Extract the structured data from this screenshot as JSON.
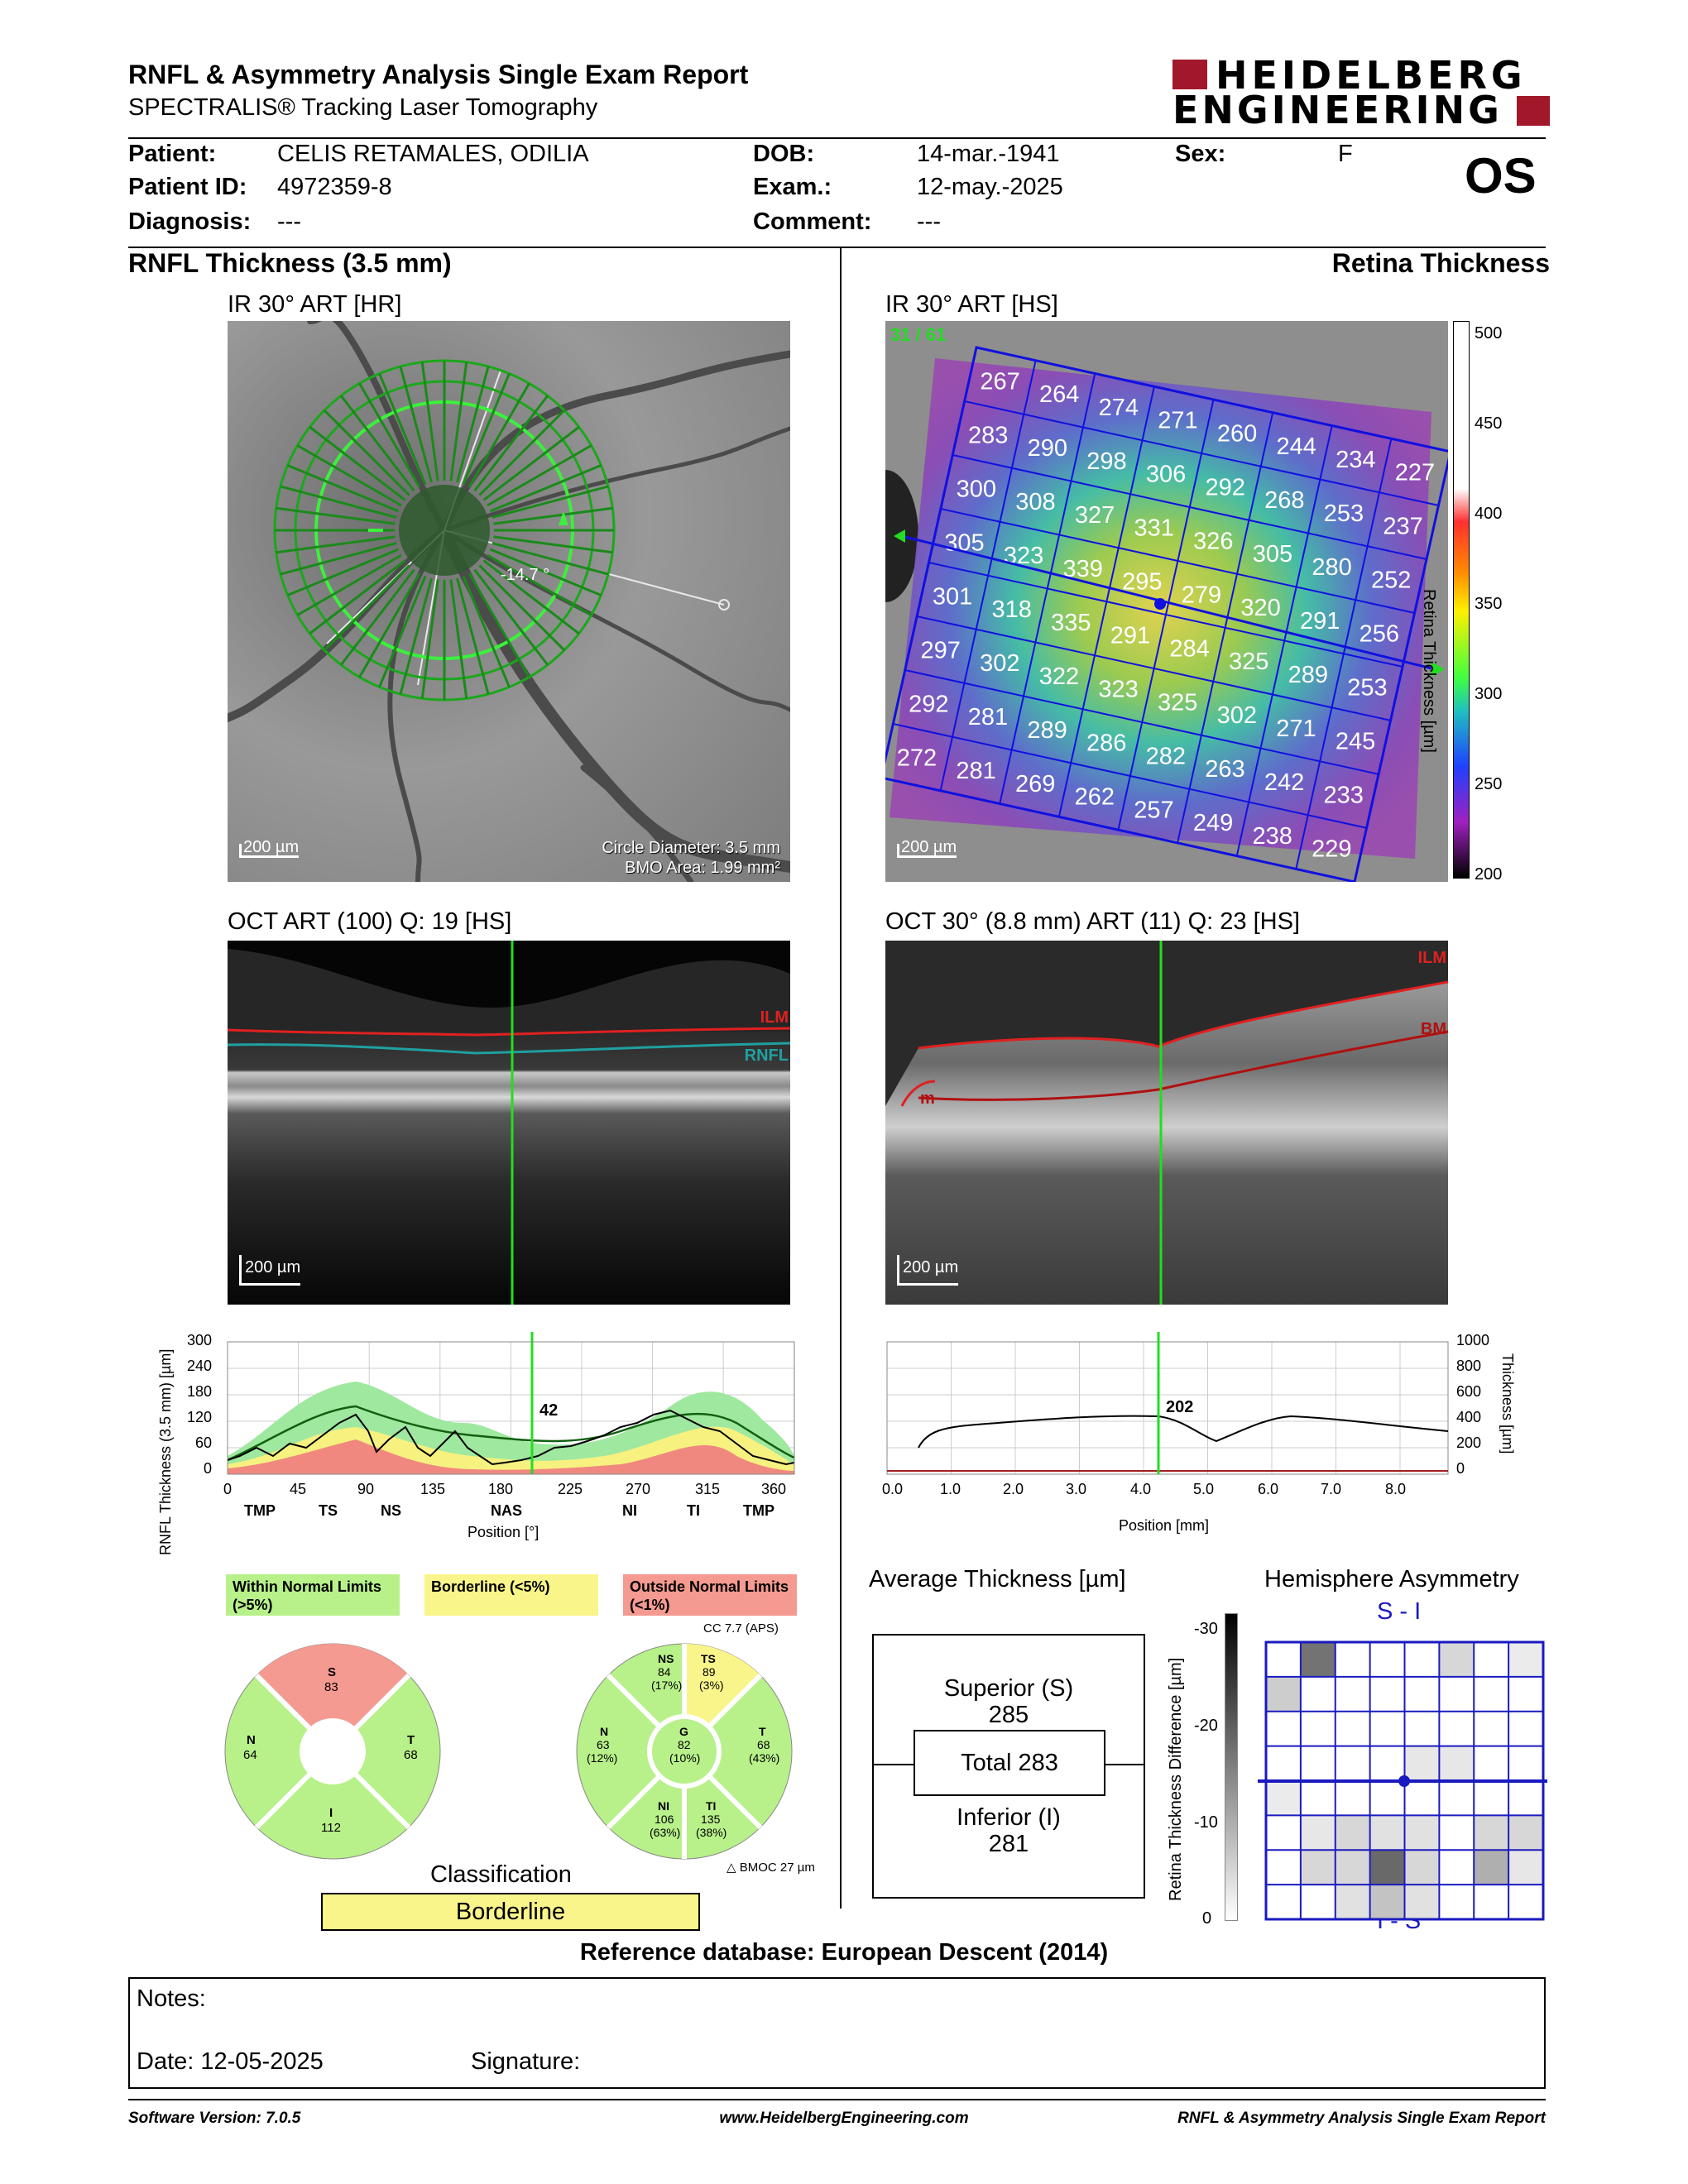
{
  "header": {
    "title": "RNFL & Asymmetry Analysis Single Exam Report",
    "subtitle": "SPECTRALIS® Tracking Laser Tomography",
    "logo_line1": "HEIDELBERG",
    "logo_line2": "ENGINEERING",
    "eye": "OS"
  },
  "patient": {
    "name_label": "Patient:",
    "name": "CELIS RETAMALES, ODILIA",
    "id_label": "Patient ID:",
    "id": "4972359-8",
    "diag_label": "Diagnosis:",
    "diag": "---",
    "dob_label": "DOB:",
    "dob": "14-mar.-1941",
    "exam_label": "Exam.:",
    "exam": "12-may.-2025",
    "comment_label": "Comment:",
    "comment": "---",
    "sex_label": "Sex:",
    "sex": "F"
  },
  "left": {
    "section_title": "RNFL Thickness (3.5 mm)",
    "ir_title": "IR 30° ART [HR]",
    "ir_scale": "200 µm",
    "ir_angle": "-14.7 °",
    "circle_diameter": "Circle Diameter: 3.5 mm",
    "bmo_area": "BMO Area: 1.99 mm²",
    "oct_title": "OCT ART (100) Q: 19 [HS]",
    "oct_scale": "200 µm",
    "ilm_label": "ILM",
    "rnfl_label": "RNFL"
  },
  "right": {
    "section_title": "Retina Thickness",
    "ir_title": "IR 30° ART [HS]",
    "ir_scale": "200 µm",
    "ir_counter": "31 / 61",
    "colorbar_ticks": [
      "500",
      "450",
      "400",
      "350",
      "300",
      "250",
      "200"
    ],
    "colorbar_label": "Retina Thickness [µm]",
    "oct_title": "OCT 30° (8.8 mm) ART (11) Q: 23 [HS]",
    "oct_scale": "200 µm",
    "ilm_label": "ILM",
    "bm_label": "BM",
    "m_label": "m"
  },
  "grid_values": [
    [
      267,
      264,
      274,
      271,
      260,
      244,
      234,
      227
    ],
    [
      283,
      290,
      298,
      306,
      292,
      268,
      253,
      237
    ],
    [
      300,
      308,
      327,
      331,
      326,
      305,
      280,
      252
    ],
    [
      305,
      323,
      339,
      295,
      279,
      320,
      291,
      256
    ],
    [
      301,
      318,
      335,
      291,
      284,
      325,
      289,
      253
    ],
    [
      297,
      302,
      322,
      323,
      325,
      302,
      271,
      245
    ],
    [
      292,
      281,
      289,
      286,
      282,
      263,
      242,
      233
    ],
    [
      272,
      281,
      269,
      262,
      257,
      249,
      238,
      229
    ]
  ],
  "rnfl_chart": {
    "ylabel": "RNFL Thickness (3.5 mm) [µm]",
    "yticks": [
      "300",
      "240",
      "180",
      "120",
      "60",
      "0"
    ],
    "xticks": [
      "0",
      "45",
      "90",
      "135",
      "180",
      "225",
      "270",
      "315",
      "360"
    ],
    "sectors": [
      "TMP",
      "TS",
      "NS",
      "NAS",
      "NI",
      "TI",
      "TMP"
    ],
    "xlabel": "Position [°]",
    "marker_value": "42"
  },
  "retina_chart": {
    "yticks": [
      "1000",
      "800",
      "600",
      "400",
      "200",
      "0"
    ],
    "ylabel": "Thickness [µm]",
    "xticks": [
      "0.0",
      "1.0",
      "2.0",
      "3.0",
      "4.0",
      "5.0",
      "6.0",
      "7.0",
      "8.0"
    ],
    "xlabel": "Position [mm]",
    "marker_value": "202"
  },
  "legend": {
    "normal": "Within Normal Limits (>5%)",
    "borderline": "Borderline (<5%)",
    "outside": "Outside Normal Limits (<1%)"
  },
  "quad_chart": {
    "S_label": "S",
    "S_value": "83",
    "N_label": "N",
    "N_value": "64",
    "T_label": "T",
    "T_value": "68",
    "I_label": "I",
    "I_value": "112"
  },
  "sector_chart": {
    "cc": "CC 7.7 (APS)",
    "NS_label": "NS",
    "NS_value": "84",
    "NS_pct": "(17%)",
    "TS_label": "TS",
    "TS_value": "89",
    "TS_pct": "(3%)",
    "N_label": "N",
    "N_value": "63",
    "N_pct": "(12%)",
    "G_label": "G",
    "G_value": "82",
    "G_pct": "(10%)",
    "T_label": "T",
    "T_value": "68",
    "T_pct": "(43%)",
    "NI_label": "NI",
    "NI_value": "106",
    "NI_pct": "(63%)",
    "TI_label": "TI",
    "TI_value": "135",
    "TI_pct": "(38%)",
    "bmoc": "BMOC 27 µm"
  },
  "classification": {
    "label": "Classification",
    "value": "Borderline"
  },
  "average_thickness": {
    "title": "Average Thickness [µm]",
    "superior_label": "Superior (S)",
    "superior_value": "285",
    "total_label": "Total 283",
    "inferior_label": "Inferior (I)",
    "inferior_value": "281"
  },
  "asymmetry": {
    "title": "Hemisphere Asymmetry",
    "top_label": "S - I",
    "bottom_label": "I - S",
    "scale_label": "Retina Thickness Difference [µm]",
    "scale_ticks": [
      "-30",
      "-20",
      "-10",
      "0"
    ],
    "cells": [
      [
        0,
        0.7,
        0,
        0,
        0,
        0.2,
        0,
        0.1
      ],
      [
        0.25,
        0,
        0,
        0,
        0,
        0,
        0,
        0
      ],
      [
        0,
        0,
        0,
        0,
        0,
        0,
        0,
        0
      ],
      [
        0,
        0,
        0,
        0,
        0.12,
        0.12,
        0,
        0
      ],
      [
        0.1,
        0,
        0,
        0,
        0,
        0,
        0,
        0
      ],
      [
        0,
        0.12,
        0.2,
        0.15,
        0.15,
        0,
        0.2,
        0.2
      ],
      [
        0,
        0.2,
        0.2,
        0.75,
        0.2,
        0,
        0.4,
        0.12
      ],
      [
        0,
        0,
        0.15,
        0.3,
        0.15,
        0,
        0,
        0
      ]
    ]
  },
  "reference_db": "Reference database: European Descent (2014)",
  "notes": {
    "label": "Notes:",
    "date": "Date: 12-05-2025",
    "signature": "Signature:"
  },
  "footer": {
    "software": "Software Version: 7.0.5",
    "url": "www.HeidelbergEngineering.com",
    "report": "RNFL & Asymmetry Analysis Single Exam Report"
  }
}
